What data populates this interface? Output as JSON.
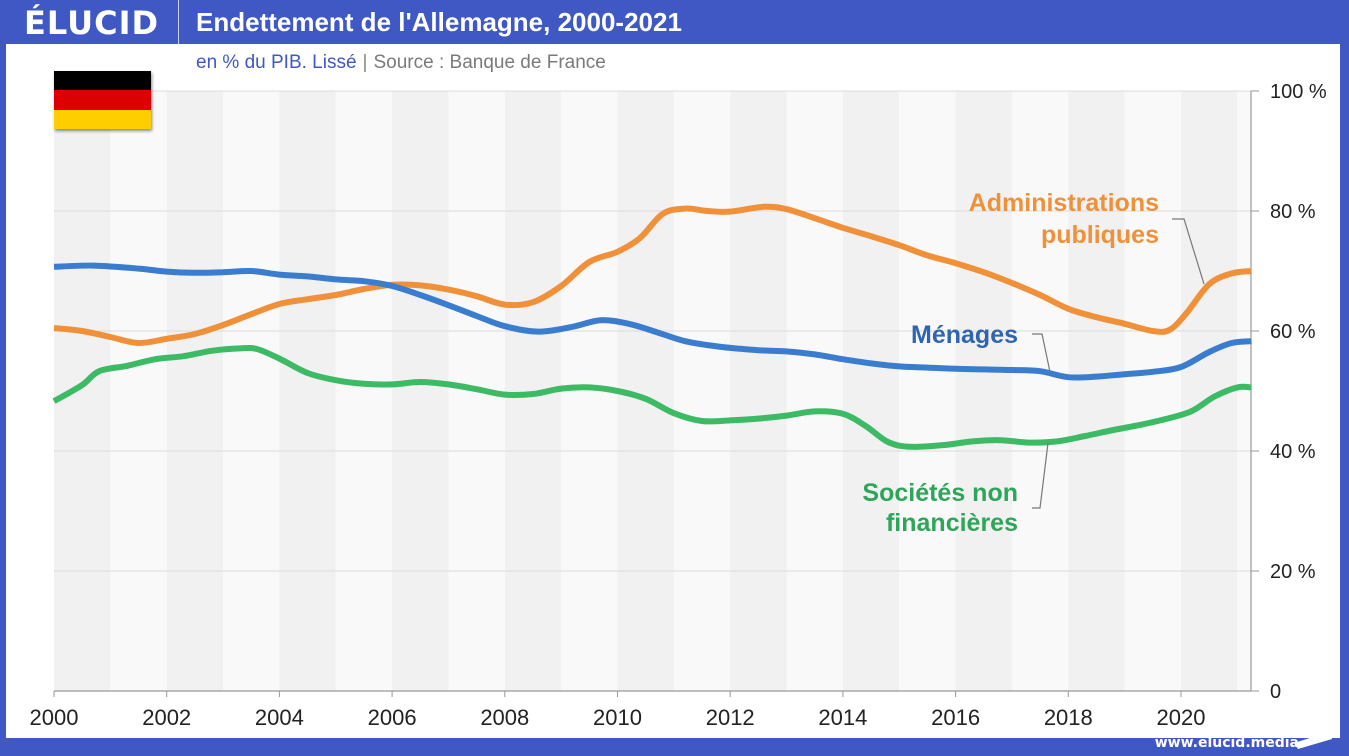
{
  "header": {
    "logo": "ÉLUCID",
    "title": "Endettement de l'Allemagne, 2000-2021"
  },
  "subtitle": {
    "unit": "en % du PIB. Lissé",
    "separator": "|",
    "source": "Source : Banque de France"
  },
  "flag": {
    "country": "Allemagne",
    "colors": [
      "#000000",
      "#dd0000",
      "#ffce00"
    ]
  },
  "footer": {
    "url": "www.elucid.media"
  },
  "colors": {
    "brand": "#3f58c4",
    "administrations": "#f0913a",
    "menages": "#3a7dcf",
    "societes": "#3cba64",
    "menages_label": "#2f64b0",
    "societes_label": "#2ea558"
  },
  "chart_data": {
    "type": "line",
    "title": "Endettement de l'Allemagne, 2000-2021",
    "subtitle": "en % du PIB. Lissé | Source : Banque de France",
    "xlabel": "",
    "ylabel": "",
    "xlim": [
      2000,
      2021.25
    ],
    "ylim": [
      0,
      100
    ],
    "x_ticks": [
      2000,
      2002,
      2004,
      2006,
      2008,
      2010,
      2012,
      2014,
      2016,
      2018,
      2020
    ],
    "y_ticks": [
      0,
      20,
      40,
      60,
      80,
      100
    ],
    "y_tick_labels": [
      "0",
      "20 %",
      "40 %",
      "60 %",
      "80 %",
      "100 %"
    ],
    "y_axis_position": "right",
    "grid": true,
    "legend": "inline-labels",
    "series": [
      {
        "name": "Administrations publiques",
        "label_lines": [
          "Administrations",
          "publiques"
        ],
        "color_key": "administrations",
        "points": [
          [
            2000,
            60.5
          ],
          [
            2000.5,
            60
          ],
          [
            2001,
            59
          ],
          [
            2001.5,
            58
          ],
          [
            2002,
            58.7
          ],
          [
            2002.5,
            59.5
          ],
          [
            2003,
            61
          ],
          [
            2003.5,
            62.8
          ],
          [
            2004,
            64.5
          ],
          [
            2004.5,
            65.3
          ],
          [
            2005,
            66
          ],
          [
            2005.5,
            67
          ],
          [
            2006,
            67.7
          ],
          [
            2006.5,
            67.6
          ],
          [
            2007,
            66.9
          ],
          [
            2007.5,
            65.8
          ],
          [
            2008,
            64.4
          ],
          [
            2008.5,
            64.8
          ],
          [
            2009,
            67.5
          ],
          [
            2009.5,
            71.5
          ],
          [
            2010,
            73.2
          ],
          [
            2010.4,
            75.5
          ],
          [
            2010.8,
            79.5
          ],
          [
            2011.2,
            80.4
          ],
          [
            2011.6,
            80
          ],
          [
            2012,
            79.9
          ],
          [
            2012.6,
            80.7
          ],
          [
            2013,
            80.3
          ],
          [
            2013.5,
            78.8
          ],
          [
            2014,
            77.2
          ],
          [
            2014.5,
            75.8
          ],
          [
            2015,
            74.3
          ],
          [
            2015.5,
            72.6
          ],
          [
            2016,
            71.3
          ],
          [
            2016.5,
            69.8
          ],
          [
            2017,
            68
          ],
          [
            2017.5,
            66
          ],
          [
            2018,
            63.7
          ],
          [
            2018.5,
            62.3
          ],
          [
            2019,
            61.2
          ],
          [
            2019.5,
            60
          ],
          [
            2019.8,
            60.2
          ],
          [
            2020.1,
            63
          ],
          [
            2020.5,
            67.8
          ],
          [
            2020.9,
            69.6
          ],
          [
            2021.25,
            70
          ]
        ]
      },
      {
        "name": "Ménages",
        "label_lines": [
          "Ménages"
        ],
        "color_key": "menages",
        "points": [
          [
            2000,
            70.7
          ],
          [
            2000.7,
            70.9
          ],
          [
            2001.5,
            70.4
          ],
          [
            2002,
            69.9
          ],
          [
            2002.5,
            69.7
          ],
          [
            2003,
            69.8
          ],
          [
            2003.5,
            70
          ],
          [
            2004,
            69.4
          ],
          [
            2004.5,
            69.1
          ],
          [
            2005,
            68.6
          ],
          [
            2005.5,
            68.3
          ],
          [
            2006,
            67.5
          ],
          [
            2006.5,
            66
          ],
          [
            2007,
            64.3
          ],
          [
            2007.5,
            62.5
          ],
          [
            2008,
            60.8
          ],
          [
            2008.6,
            59.9
          ],
          [
            2009.2,
            60.7
          ],
          [
            2009.7,
            61.8
          ],
          [
            2010.2,
            61.2
          ],
          [
            2010.7,
            59.8
          ],
          [
            2011.2,
            58.3
          ],
          [
            2011.8,
            57.4
          ],
          [
            2012.5,
            56.8
          ],
          [
            2013,
            56.6
          ],
          [
            2013.5,
            56.1
          ],
          [
            2014,
            55.3
          ],
          [
            2014.5,
            54.6
          ],
          [
            2015,
            54.1
          ],
          [
            2015.5,
            53.9
          ],
          [
            2016,
            53.7
          ],
          [
            2016.5,
            53.6
          ],
          [
            2017,
            53.5
          ],
          [
            2017.5,
            53.3
          ],
          [
            2018,
            52.3
          ],
          [
            2018.5,
            52.4
          ],
          [
            2019,
            52.8
          ],
          [
            2019.5,
            53.2
          ],
          [
            2020,
            54
          ],
          [
            2020.5,
            56.5
          ],
          [
            2020.9,
            58
          ],
          [
            2021.25,
            58.3
          ]
        ]
      },
      {
        "name": "Sociétés non financières",
        "label_lines": [
          "Sociétés non",
          "financières"
        ],
        "color_key": "societes",
        "points": [
          [
            2000,
            48.3
          ],
          [
            2000.5,
            51
          ],
          [
            2000.8,
            53.3
          ],
          [
            2001.3,
            54.2
          ],
          [
            2001.8,
            55.3
          ],
          [
            2002.3,
            55.8
          ],
          [
            2002.8,
            56.7
          ],
          [
            2003.3,
            57.1
          ],
          [
            2003.6,
            57
          ],
          [
            2004,
            55.4
          ],
          [
            2004.5,
            53
          ],
          [
            2005,
            51.8
          ],
          [
            2005.5,
            51.2
          ],
          [
            2006,
            51.1
          ],
          [
            2006.5,
            51.5
          ],
          [
            2007,
            51.1
          ],
          [
            2007.5,
            50.3
          ],
          [
            2008,
            49.4
          ],
          [
            2008.5,
            49.5
          ],
          [
            2009,
            50.4
          ],
          [
            2009.5,
            50.6
          ],
          [
            2010,
            50
          ],
          [
            2010.5,
            48.7
          ],
          [
            2011,
            46.3
          ],
          [
            2011.5,
            45
          ],
          [
            2012,
            45.1
          ],
          [
            2012.5,
            45.4
          ],
          [
            2013,
            45.9
          ],
          [
            2013.5,
            46.6
          ],
          [
            2014,
            46.2
          ],
          [
            2014.4,
            44.2
          ],
          [
            2014.8,
            41.5
          ],
          [
            2015.2,
            40.7
          ],
          [
            2015.8,
            41
          ],
          [
            2016.3,
            41.6
          ],
          [
            2016.8,
            41.8
          ],
          [
            2017.3,
            41.4
          ],
          [
            2017.8,
            41.6
          ],
          [
            2018.3,
            42.5
          ],
          [
            2018.8,
            43.5
          ],
          [
            2019.3,
            44.4
          ],
          [
            2019.8,
            45.5
          ],
          [
            2020.2,
            46.7
          ],
          [
            2020.6,
            49.1
          ],
          [
            2021,
            50.6
          ],
          [
            2021.25,
            50.6
          ]
        ]
      }
    ]
  }
}
